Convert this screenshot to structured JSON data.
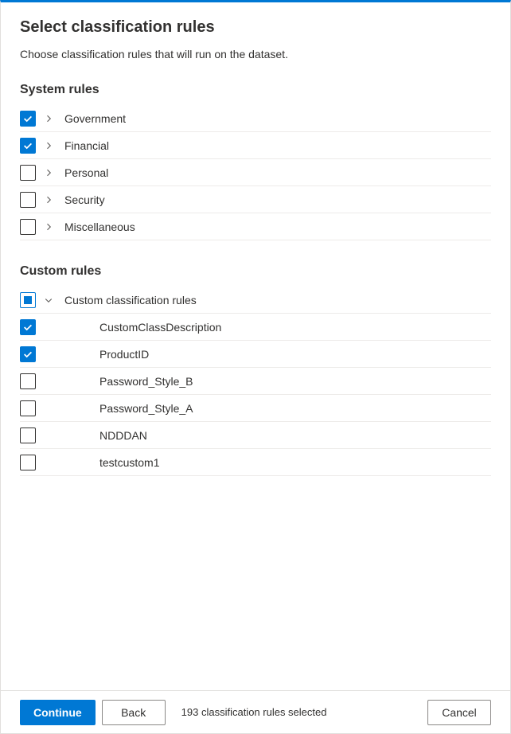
{
  "header": {
    "title": "Select classification rules",
    "subtitle": "Choose classification rules that will run on the dataset."
  },
  "sections": {
    "system": {
      "title": "System rules",
      "items": [
        {
          "label": "Government",
          "checked": true,
          "expanded": false
        },
        {
          "label": "Financial",
          "checked": true,
          "expanded": false
        },
        {
          "label": "Personal",
          "checked": false,
          "expanded": false
        },
        {
          "label": "Security",
          "checked": false,
          "expanded": false
        },
        {
          "label": "Miscellaneous",
          "checked": false,
          "expanded": false
        }
      ]
    },
    "custom": {
      "title": "Custom rules",
      "group": {
        "label": "Custom classification rules",
        "state": "indeterminate",
        "expanded": true
      },
      "children": [
        {
          "label": "CustomClassDescription",
          "checked": true
        },
        {
          "label": "ProductID",
          "checked": true
        },
        {
          "label": "Password_Style_B",
          "checked": false
        },
        {
          "label": "Password_Style_A",
          "checked": false
        },
        {
          "label": "NDDDAN",
          "checked": false
        },
        {
          "label": "testcustom1",
          "checked": false
        }
      ]
    }
  },
  "footer": {
    "continue_label": "Continue",
    "back_label": "Back",
    "cancel_label": "Cancel",
    "status": "193 classification rules selected"
  },
  "colors": {
    "accent": "#0078d4",
    "text": "#323130",
    "border": "#edebe9",
    "button_border": "#8a8886"
  }
}
